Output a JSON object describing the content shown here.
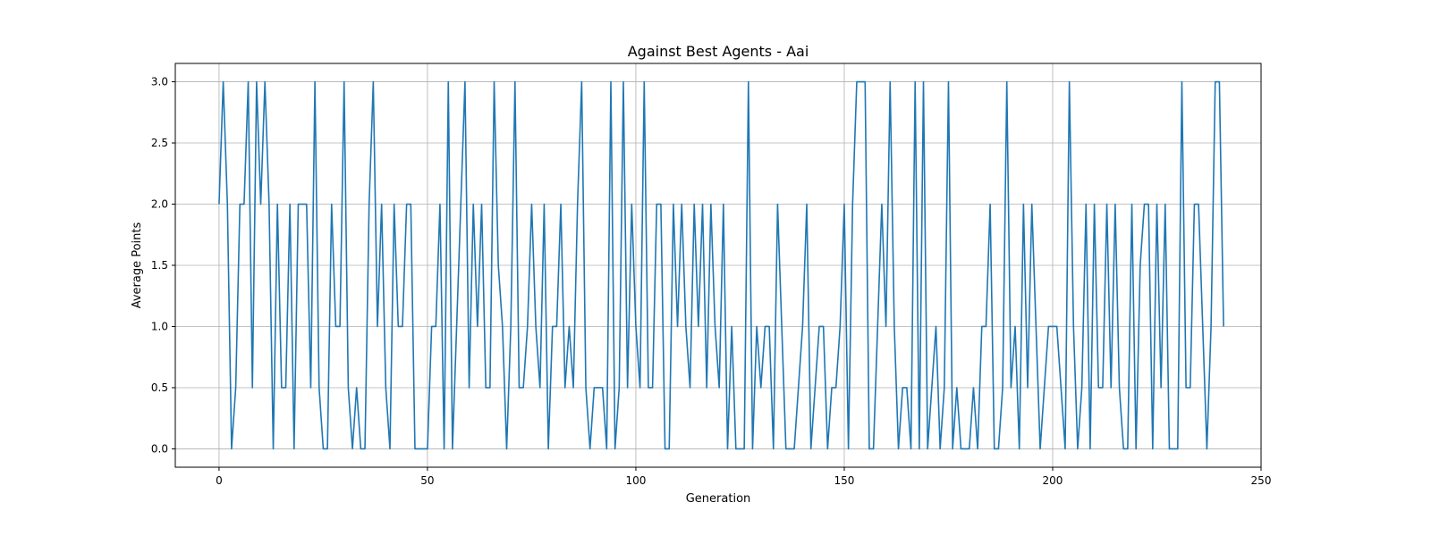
{
  "chart_data": {
    "type": "line",
    "title": "Against Best Agents - Aai",
    "xlabel": "Generation",
    "ylabel": "Average Points",
    "xlim": [
      -10.5,
      250
    ],
    "ylim": [
      -0.15,
      3.15
    ],
    "xticks": [
      0,
      50,
      100,
      150,
      200,
      250
    ],
    "yticks": [
      0.0,
      0.5,
      1.0,
      1.5,
      2.0,
      2.5,
      3.0
    ],
    "xtick_labels": [
      "0",
      "50",
      "100",
      "150",
      "200",
      "250"
    ],
    "ytick_labels": [
      "0.0",
      "0.5",
      "1.0",
      "1.5",
      "2.0",
      "2.5",
      "3.0"
    ],
    "grid": true,
    "series": [
      {
        "color": "#1f77b4",
        "x_start": 0,
        "values": [
          2,
          3,
          2,
          0,
          0.5,
          2,
          2,
          3,
          0.5,
          3,
          2,
          3,
          2,
          0,
          2,
          0.5,
          0.5,
          2,
          0,
          2,
          2,
          2,
          0.5,
          3,
          0.5,
          0,
          0,
          2,
          1,
          1,
          3,
          0.5,
          0,
          0.5,
          0,
          0,
          2,
          3,
          1,
          2,
          0.5,
          0,
          2,
          1,
          1,
          2,
          2,
          0,
          0,
          0,
          0,
          1,
          1,
          2,
          0,
          3,
          0,
          1,
          2,
          3,
          0.5,
          2,
          1,
          2,
          0.5,
          0.5,
          3,
          1.5,
          1,
          0,
          1,
          3,
          0.5,
          0.5,
          1,
          2,
          1,
          0.5,
          2,
          0,
          1,
          1,
          2,
          0.5,
          1,
          0.5,
          2,
          3,
          0.5,
          0,
          0.5,
          0.5,
          0.5,
          0,
          3,
          0,
          0.5,
          3,
          0.5,
          2,
          1,
          0.5,
          3,
          0.5,
          0.5,
          2,
          2,
          0,
          0,
          2,
          1,
          2,
          1,
          0.5,
          2,
          1,
          2,
          0.5,
          2,
          1,
          0.5,
          2,
          0,
          1,
          0,
          0,
          0,
          3,
          0,
          1,
          0.5,
          1,
          1,
          0,
          2,
          1,
          0,
          0,
          0,
          0.5,
          1,
          2,
          0,
          0.5,
          1,
          1,
          0,
          0.5,
          0.5,
          1,
          2,
          0,
          2,
          3,
          3,
          3,
          0,
          0,
          1,
          2,
          1,
          3,
          1,
          0,
          0.5,
          0.5,
          0,
          3,
          0,
          3,
          0,
          0.5,
          1,
          0,
          0.5,
          3,
          0,
          0.5,
          0,
          0,
          0,
          0.5,
          0,
          1,
          1,
          2,
          0,
          0,
          0.5,
          3,
          0.5,
          1,
          0,
          2,
          0.5,
          2,
          1,
          0,
          0.5,
          1,
          1,
          1,
          0.5,
          0,
          3,
          1,
          0,
          0.5,
          2,
          0,
          2,
          0.5,
          0.5,
          2,
          0.5,
          2,
          0.5,
          0,
          0,
          2,
          0,
          1.5,
          2,
          2,
          0,
          2,
          0.5,
          2,
          0,
          0,
          0,
          3,
          0.5,
          0.5,
          2,
          2,
          1,
          0,
          1,
          3,
          3,
          1
        ]
      }
    ]
  }
}
